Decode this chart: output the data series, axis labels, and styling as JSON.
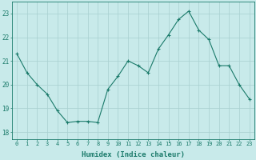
{
  "x": [
    0,
    1,
    2,
    3,
    4,
    5,
    6,
    7,
    8,
    9,
    10,
    11,
    12,
    13,
    14,
    15,
    16,
    17,
    18,
    19,
    20,
    21,
    22,
    23
  ],
  "y": [
    21.3,
    20.5,
    20.0,
    19.6,
    18.9,
    18.4,
    18.45,
    18.45,
    18.4,
    19.8,
    20.35,
    21.0,
    20.8,
    20.5,
    21.5,
    22.1,
    22.75,
    23.1,
    22.3,
    21.9,
    20.8,
    20.8,
    20.0,
    19.4
  ],
  "xlabel": "Humidex (Indice chaleur)",
  "ylim": [
    17.7,
    23.5
  ],
  "xlim": [
    -0.5,
    23.5
  ],
  "yticks": [
    18,
    19,
    20,
    21,
    22,
    23
  ],
  "xticks": [
    0,
    1,
    2,
    3,
    4,
    5,
    6,
    7,
    8,
    9,
    10,
    11,
    12,
    13,
    14,
    15,
    16,
    17,
    18,
    19,
    20,
    21,
    22,
    23
  ],
  "line_color": "#1a7a6a",
  "marker_color": "#1a7a6a",
  "bg_color": "#c8eaea",
  "grid_color": "#a8d0d0",
  "tick_label_color": "#1a7a6a",
  "axis_label_color": "#1a7a6a",
  "xlabel_fontsize": 6.5,
  "ytick_fontsize": 5.5,
  "xtick_fontsize": 5.0
}
